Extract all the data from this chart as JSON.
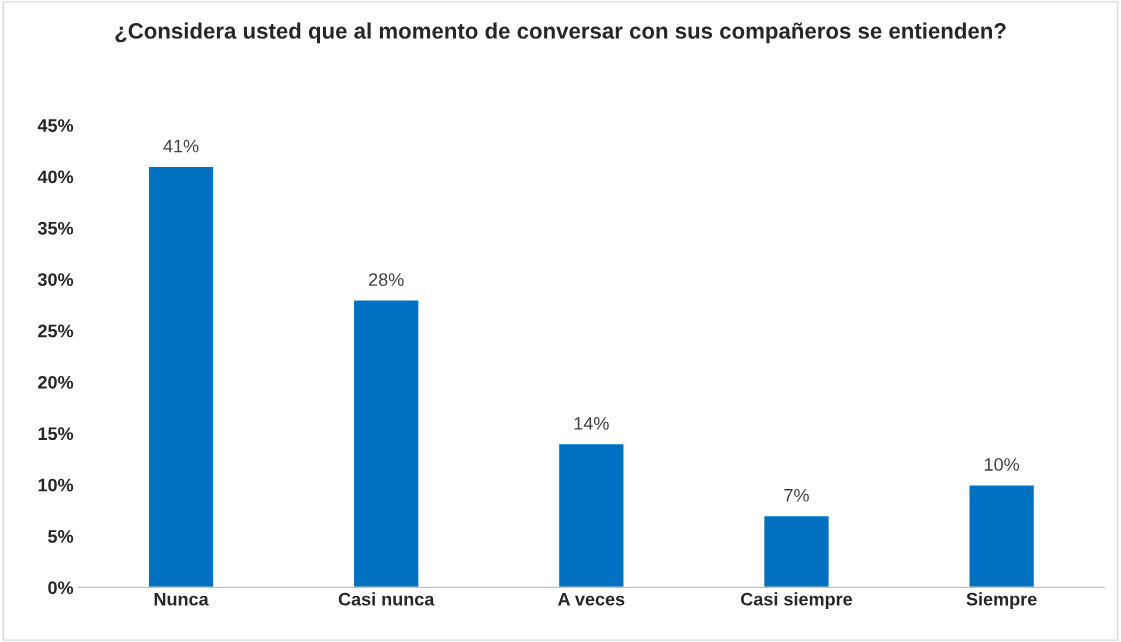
{
  "chart_data": {
    "type": "bar",
    "title": "¿Considera usted que al momento de conversar con sus compañeros se entienden?",
    "categories": [
      "Nunca",
      "Casi nunca",
      "A veces",
      "Casi siempre",
      "Siempre"
    ],
    "values": [
      41,
      28,
      14,
      7,
      10
    ],
    "value_labels": [
      "41%",
      "28%",
      "14%",
      "7%",
      "10%"
    ],
    "color": "#0070c0",
    "ylim": [
      0,
      45
    ],
    "yticks": [
      {
        "value": 0,
        "label": "0%"
      },
      {
        "value": 5,
        "label": "5%"
      },
      {
        "value": 10,
        "label": "10%"
      },
      {
        "value": 15,
        "label": "15%"
      },
      {
        "value": 20,
        "label": "20%"
      },
      {
        "value": 25,
        "label": "25%"
      },
      {
        "value": 30,
        "label": "30%"
      },
      {
        "value": 35,
        "label": "35%"
      },
      {
        "value": 40,
        "label": "40%"
      },
      {
        "value": 45,
        "label": "45%"
      }
    ],
    "grid": false
  }
}
